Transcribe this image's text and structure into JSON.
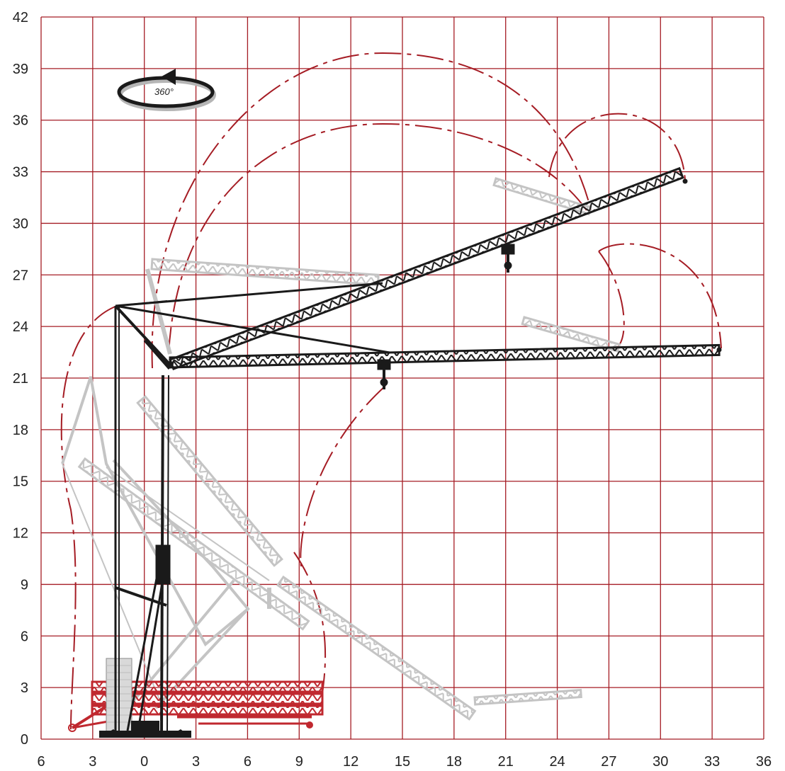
{
  "diagram": {
    "type": "crane-working-range",
    "rotation_label": "360°",
    "y_ticks": [
      "0",
      "3",
      "6",
      "9",
      "12",
      "15",
      "18",
      "21",
      "24",
      "27",
      "30",
      "33",
      "36",
      "39",
      "42"
    ],
    "x_ticks": [
      "6",
      "3",
      "0",
      "3",
      "6",
      "9",
      "12",
      "15",
      "18",
      "21",
      "24",
      "27",
      "30",
      "33",
      "36"
    ],
    "colors": {
      "grid": "#a51c24",
      "envelope": "#a51c24",
      "boom_active": "#1a1a1a",
      "boom_ghost": "#c4c4c4",
      "boom_transport": "#c0282f"
    }
  }
}
